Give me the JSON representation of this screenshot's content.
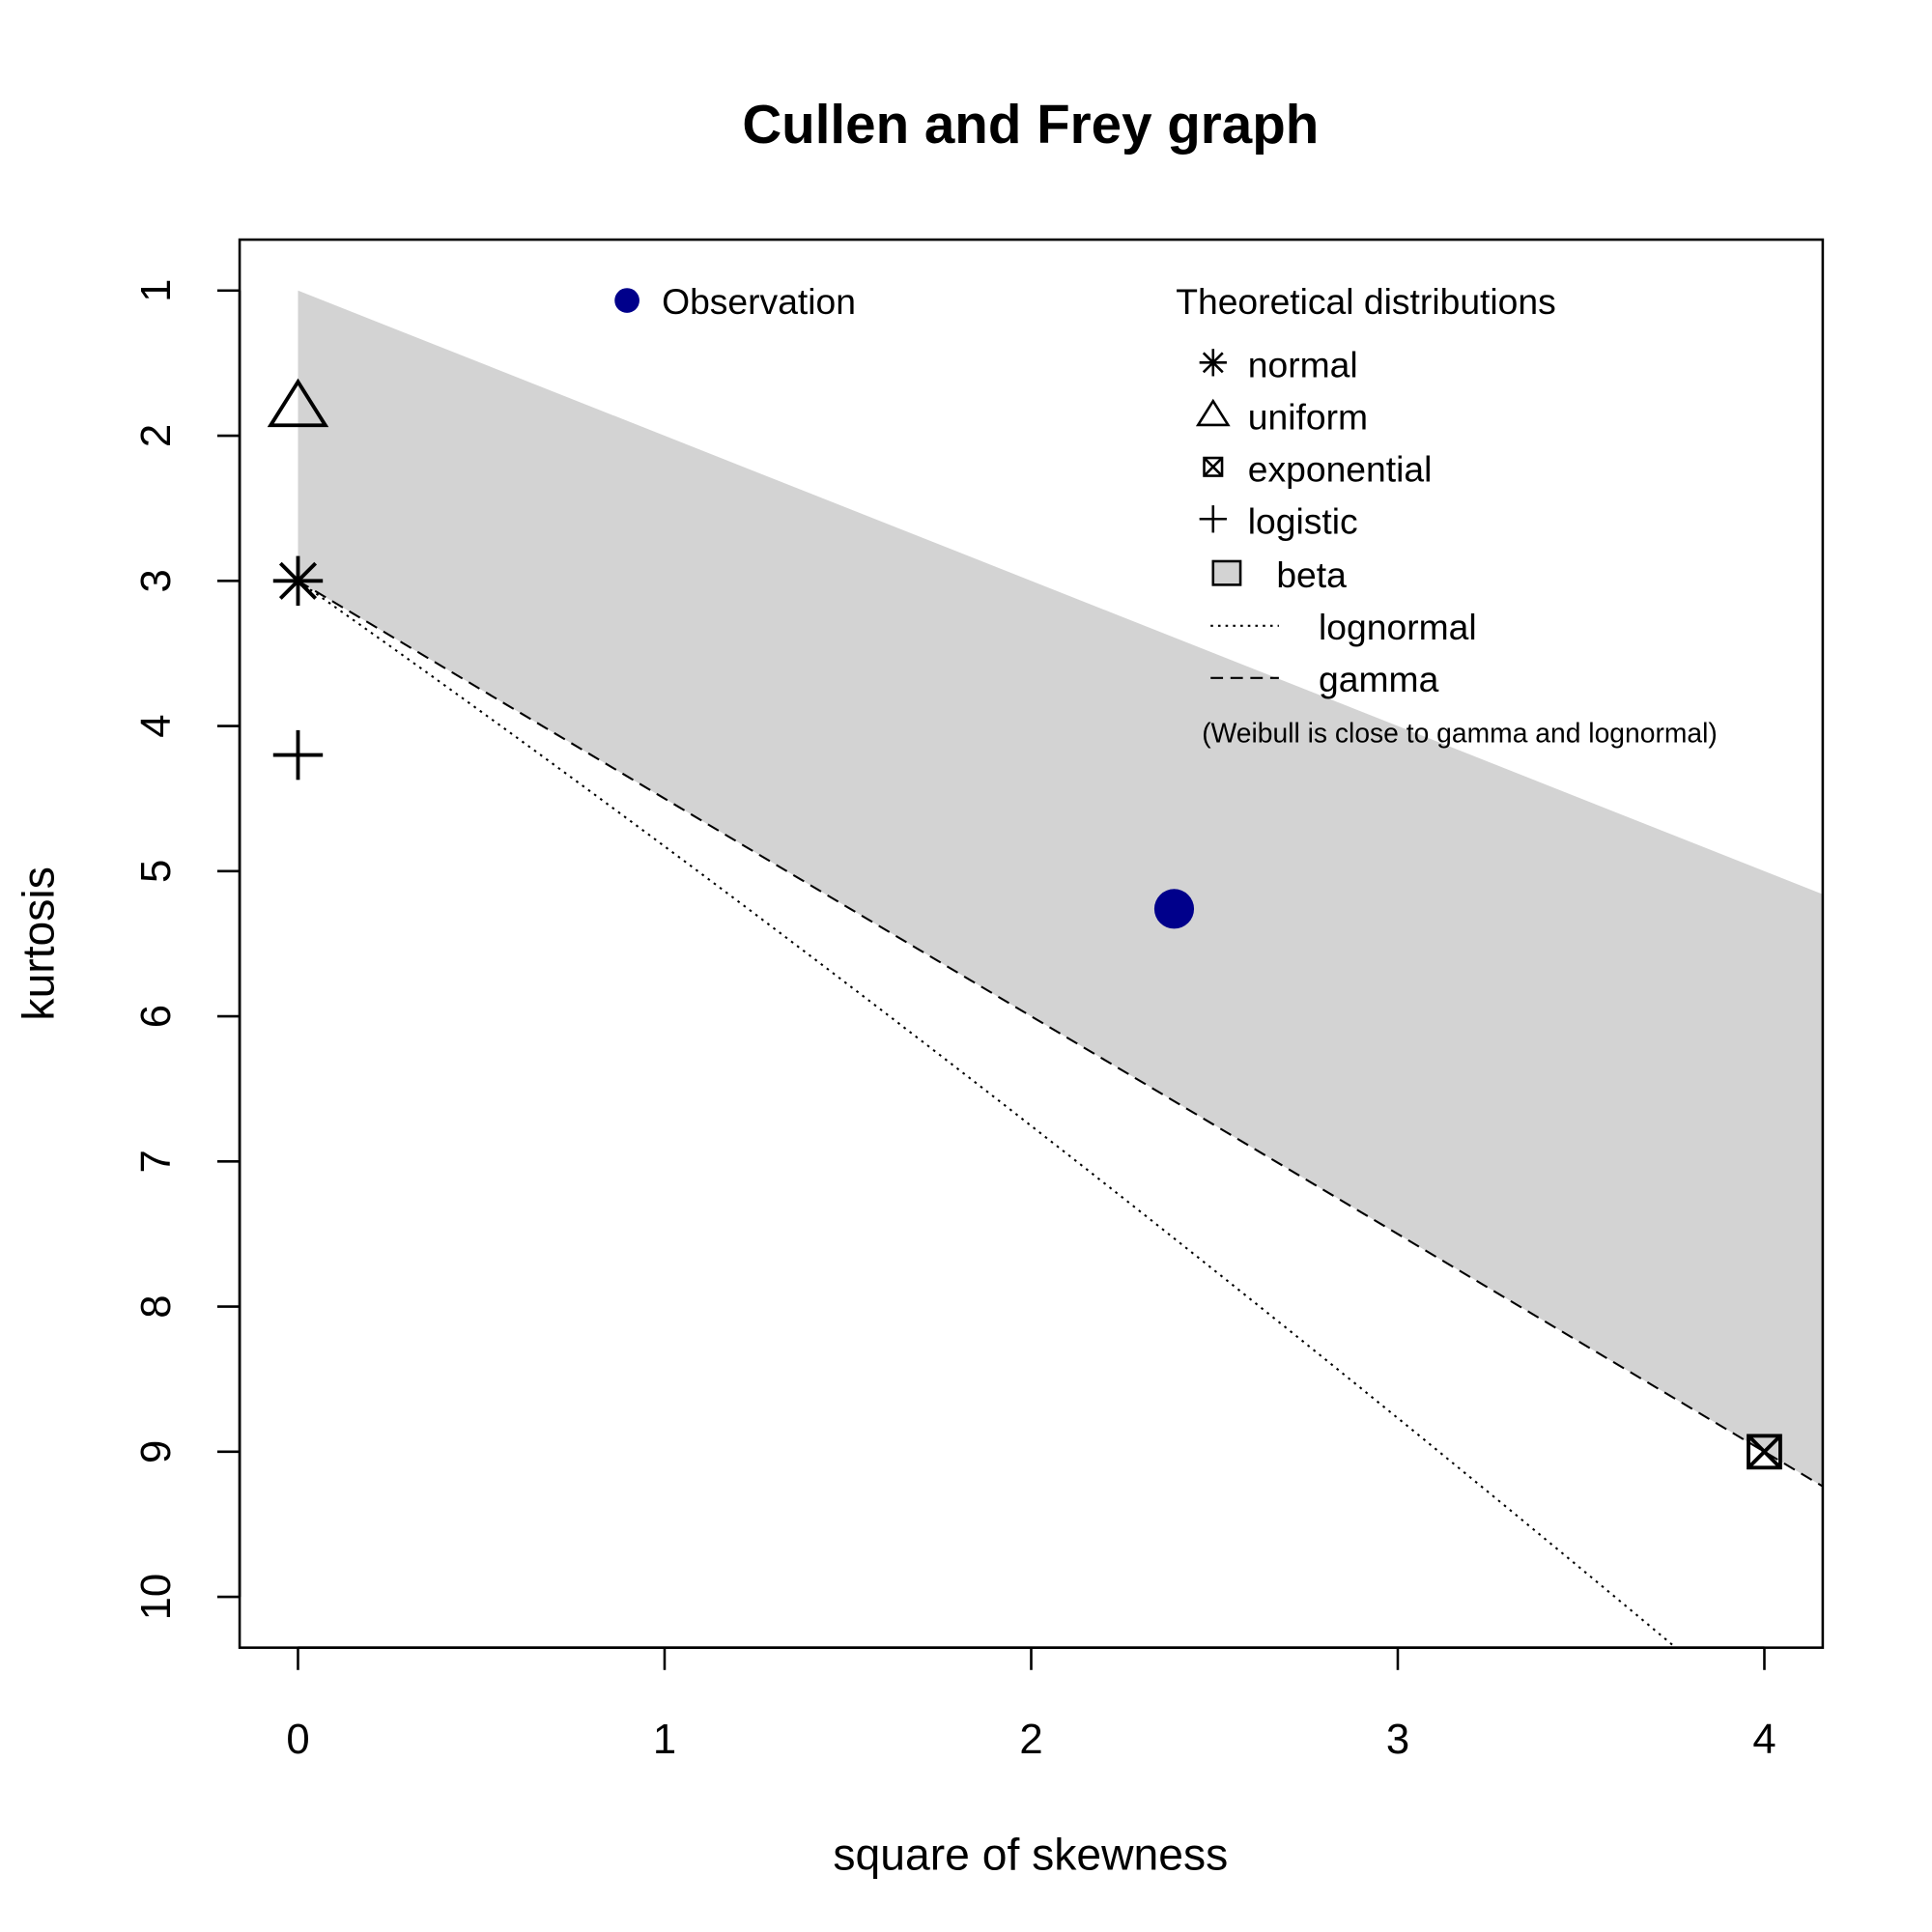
{
  "chart_data": {
    "type": "scatter",
    "title": "Cullen and Frey graph",
    "xlabel": "square of skewness",
    "ylabel": "kurtosis",
    "xlim": [
      -0.16,
      4.16
    ],
    "ylim": [
      10.35,
      0.65
    ],
    "xticks": [
      0,
      1,
      2,
      3,
      4
    ],
    "yticks": [
      1,
      2,
      3,
      4,
      5,
      6,
      7,
      8,
      9,
      10
    ],
    "grid": false,
    "observation": {
      "label": "Observation",
      "x": 2.39,
      "y": 5.26,
      "color": "#00008B"
    },
    "theoretical_title": "Theoretical distributions",
    "points": [
      {
        "name": "normal",
        "x": 0,
        "y": 3,
        "marker": "asterisk"
      },
      {
        "name": "uniform",
        "x": 0,
        "y": 1.8,
        "marker": "triangle"
      },
      {
        "name": "exponential",
        "x": 4,
        "y": 9,
        "marker": "boxed-x"
      },
      {
        "name": "logistic",
        "x": 0,
        "y": 4.2,
        "marker": "plus"
      }
    ],
    "regions": [
      {
        "name": "beta",
        "lower": "y = x + 1",
        "upper": "y = 1.5x + 3",
        "color": "#D3D3D3"
      }
    ],
    "lines": [
      {
        "name": "lognormal",
        "style": "dotted"
      },
      {
        "name": "gamma",
        "style": "dashed",
        "formula": "y = 3 + 1.5x"
      }
    ],
    "note": "(Weibull is close to gamma and lognormal)",
    "legend_placement": "top"
  }
}
